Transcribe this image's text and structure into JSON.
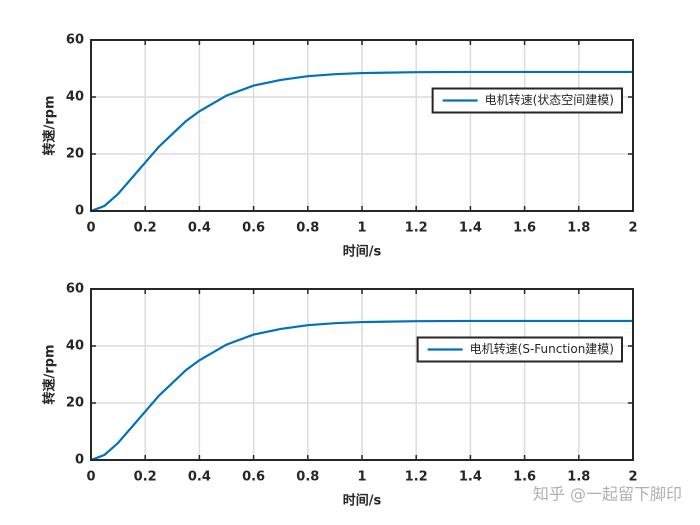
{
  "chart_data": [
    {
      "type": "line",
      "xlabel": "时间/s",
      "ylabel": "转速/rpm",
      "x": [
        0,
        0.05,
        0.1,
        0.15,
        0.2,
        0.25,
        0.3,
        0.35,
        0.4,
        0.5,
        0.6,
        0.7,
        0.8,
        0.9,
        1,
        1.2,
        1.4,
        1.6,
        1.8,
        2
      ],
      "series": [
        {
          "name": "电机转速(状态空间建模)",
          "color": "#0072bd",
          "values": [
            0,
            1.8,
            6,
            11.5,
            17,
            22.5,
            27,
            31.5,
            35,
            40.5,
            44,
            46,
            47.3,
            48,
            48.4,
            48.7,
            48.8,
            48.8,
            48.8,
            48.8
          ]
        }
      ],
      "xlim": [
        0,
        2
      ],
      "xticks": [
        0,
        0.2,
        0.4,
        0.6,
        0.8,
        1,
        1.2,
        1.4,
        1.6,
        1.8,
        2
      ],
      "ylim": [
        0,
        60
      ],
      "yticks": [
        0,
        20,
        40,
        60
      ],
      "grid": true,
      "legend_location": "east"
    },
    {
      "type": "line",
      "xlabel": "时间/s",
      "ylabel": "转速/rpm",
      "x": [
        0,
        0.05,
        0.1,
        0.15,
        0.2,
        0.25,
        0.3,
        0.35,
        0.4,
        0.5,
        0.6,
        0.7,
        0.8,
        0.9,
        1,
        1.2,
        1.4,
        1.6,
        1.8,
        2
      ],
      "series": [
        {
          "name": "电机转速(S-Function建模)",
          "color": "#0072bd",
          "values": [
            0,
            1.8,
            6,
            11.5,
            17,
            22.5,
            27,
            31.5,
            35,
            40.5,
            44,
            46,
            47.3,
            48,
            48.4,
            48.7,
            48.8,
            48.8,
            48.8,
            48.8
          ]
        }
      ],
      "xlim": [
        0,
        2
      ],
      "xticks": [
        0,
        0.2,
        0.4,
        0.6,
        0.8,
        1,
        1.2,
        1.4,
        1.6,
        1.8,
        2
      ],
      "ylim": [
        0,
        60
      ],
      "yticks": [
        0,
        20,
        40,
        60
      ],
      "grid": true,
      "legend_location": "east"
    }
  ],
  "watermark": "知乎 @一起留下脚印"
}
